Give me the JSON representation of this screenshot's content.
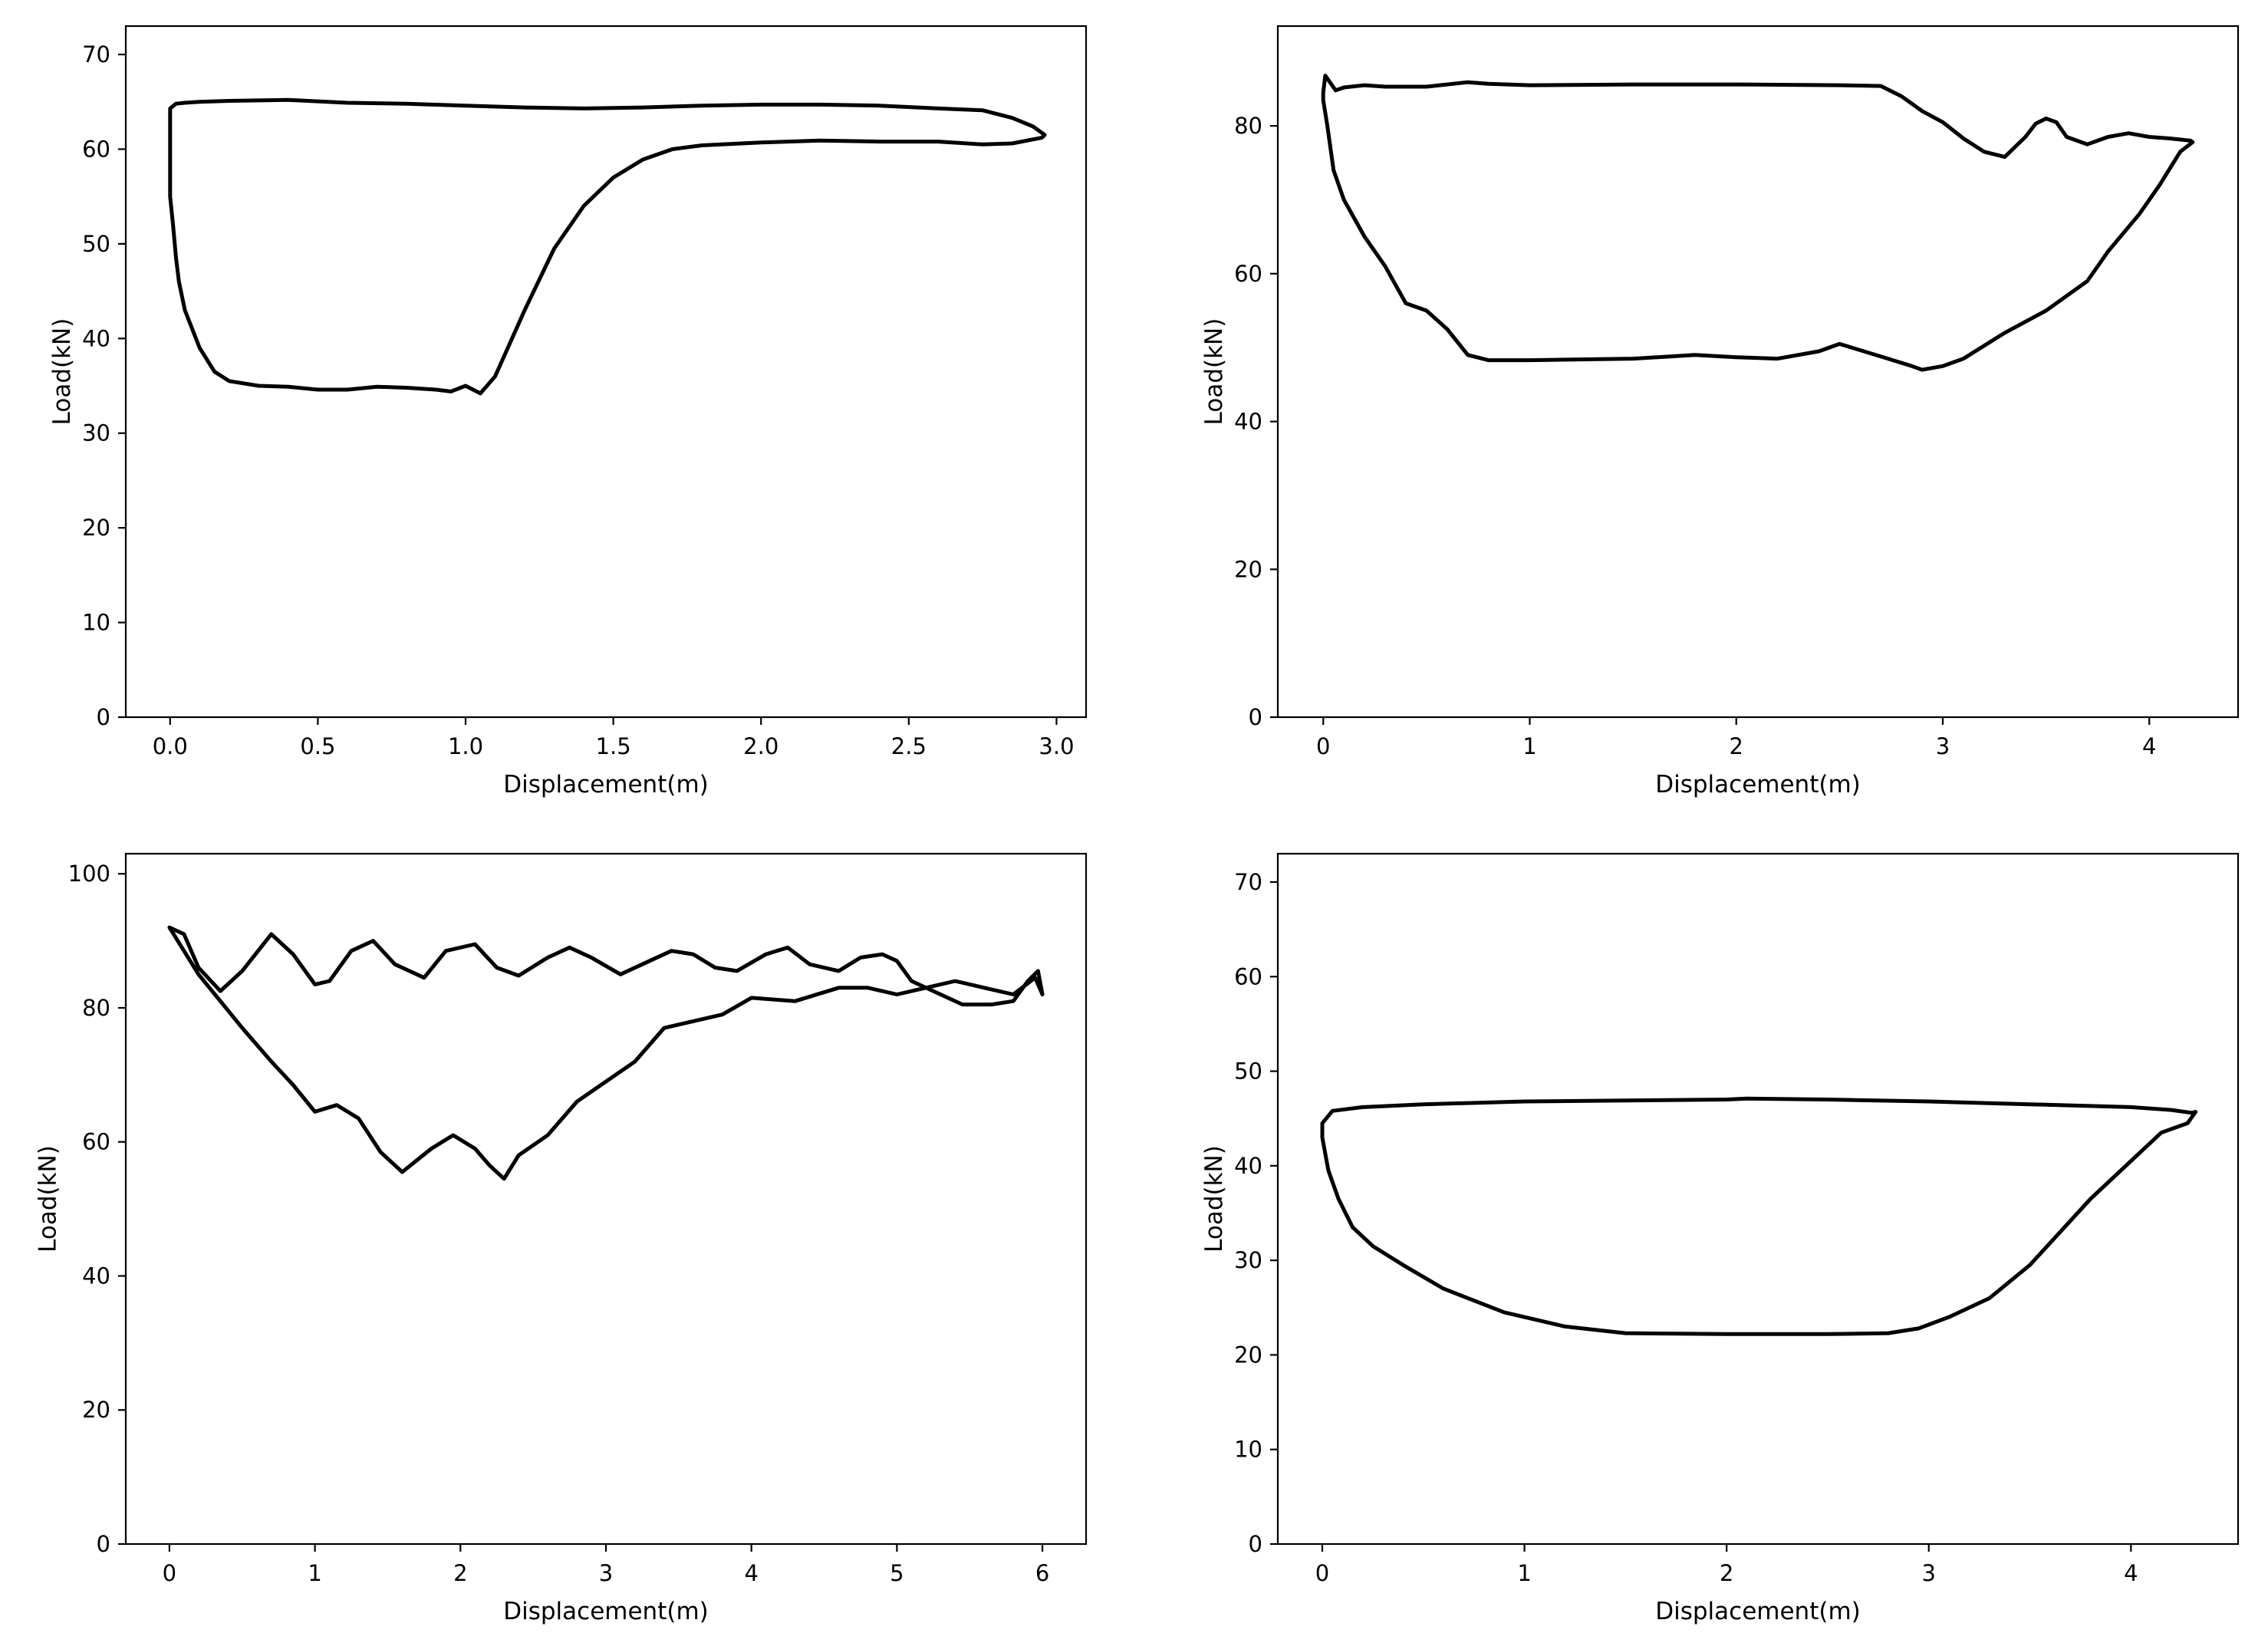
{
  "figure": {
    "background": "#ffffff",
    "line_color": "#000000"
  },
  "chart_data": [
    {
      "type": "line",
      "title": "",
      "xlabel": "Displacement(m)",
      "ylabel": "Load(kN)",
      "xlim": [
        -0.15,
        3.1
      ],
      "ylim": [
        0,
        73
      ],
      "xticks": [
        0.0,
        0.5,
        1.0,
        1.5,
        2.0,
        2.5,
        3.0
      ],
      "xtick_labels": [
        "0.0",
        "0.5",
        "1.0",
        "1.5",
        "2.0",
        "2.5",
        "3.0"
      ],
      "yticks": [
        0,
        10,
        20,
        30,
        40,
        50,
        60,
        70
      ],
      "ytick_labels": [
        "0",
        "10",
        "20",
        "30",
        "40",
        "50",
        "60",
        "70"
      ],
      "grid": false,
      "series": [
        {
          "x": [
            0.0,
            0.0,
            0.0,
            0.02,
            0.05,
            0.1,
            0.2,
            0.4,
            0.6,
            0.8,
            1.0,
            1.2,
            1.4,
            1.6,
            1.8,
            2.0,
            2.2,
            2.4,
            2.6,
            2.75,
            2.85,
            2.92,
            2.96,
            2.95,
            2.85,
            2.75,
            2.6,
            2.4,
            2.2,
            2.0,
            1.8,
            1.7,
            1.6,
            1.5,
            1.4,
            1.3,
            1.2,
            1.15,
            1.1,
            1.05,
            1.0,
            0.95,
            0.9,
            0.8,
            0.7,
            0.6,
            0.5,
            0.4,
            0.3,
            0.2,
            0.15,
            0.1,
            0.05,
            0.03,
            0.02,
            0.01,
            0.0,
            0.0,
            0.0
          ],
          "y": [
            62.5,
            63.5,
            64.3,
            64.8,
            64.9,
            65.0,
            65.1,
            65.2,
            64.9,
            64.8,
            64.6,
            64.4,
            64.3,
            64.4,
            64.6,
            64.7,
            64.7,
            64.6,
            64.3,
            64.1,
            63.3,
            62.4,
            61.5,
            61.2,
            60.6,
            60.5,
            60.8,
            60.8,
            60.9,
            60.7,
            60.4,
            60.0,
            58.9,
            57.0,
            54.0,
            49.5,
            43.0,
            39.5,
            36.0,
            34.2,
            35.0,
            34.4,
            34.6,
            34.8,
            34.9,
            34.6,
            34.6,
            34.9,
            35.0,
            35.5,
            36.5,
            39.0,
            43.0,
            46.0,
            48.5,
            52.0,
            55.0,
            58.0,
            60.5
          ]
        }
      ]
    },
    {
      "type": "line",
      "title": "",
      "xlabel": "Displacement(m)",
      "ylabel": "Load(kN)",
      "xlim": [
        -0.22,
        4.43
      ],
      "ylim": [
        0,
        93.5
      ],
      "xticks": [
        0,
        1,
        2,
        3,
        4
      ],
      "xtick_labels": [
        "0",
        "1",
        "2",
        "3",
        "4"
      ],
      "yticks": [
        0,
        20,
        40,
        60,
        80
      ],
      "ytick_labels": [
        "0",
        "20",
        "40",
        "60",
        "80"
      ],
      "grid": false,
      "series": [
        {
          "x": [
            0.0,
            0.01,
            0.03,
            0.06,
            0.1,
            0.2,
            0.3,
            0.5,
            0.7,
            0.8,
            1.0,
            1.5,
            2.0,
            2.5,
            2.7,
            2.8,
            2.9,
            3.0,
            3.1,
            3.2,
            3.3,
            3.4,
            3.45,
            3.5,
            3.55,
            3.6,
            3.7,
            3.8,
            3.9,
            4.0,
            4.1,
            4.2,
            4.21,
            4.15,
            4.05,
            3.95,
            3.8,
            3.7,
            3.5,
            3.3,
            3.1,
            3.0,
            2.9,
            2.85,
            2.7,
            2.5,
            2.4,
            2.2,
            2.0,
            1.8,
            1.5,
            1.0,
            0.8,
            0.7,
            0.6,
            0.5,
            0.4,
            0.3,
            0.2,
            0.1,
            0.05,
            0.02,
            0.0
          ],
          "y": [
            84.5,
            86.8,
            86.0,
            84.8,
            85.2,
            85.5,
            85.3,
            85.3,
            85.9,
            85.7,
            85.5,
            85.6,
            85.6,
            85.5,
            85.4,
            84.0,
            82.0,
            80.5,
            78.3,
            76.5,
            75.8,
            78.5,
            80.3,
            81.0,
            80.5,
            78.5,
            77.5,
            78.5,
            79.0,
            78.5,
            78.3,
            78.0,
            77.8,
            76.5,
            72.0,
            68.0,
            63.0,
            59.0,
            55.0,
            52.0,
            48.5,
            47.5,
            47.0,
            47.5,
            48.8,
            50.5,
            49.5,
            48.5,
            48.7,
            49.0,
            48.5,
            48.3,
            48.3,
            49.0,
            52.5,
            55.0,
            56.0,
            61.0,
            65.0,
            70.0,
            74.0,
            80.0,
            83.5
          ]
        }
      ]
    },
    {
      "type": "line",
      "title": "",
      "xlabel": "Displacement(m)",
      "ylabel": "Load(kN)",
      "xlim": [
        -0.3,
        6.3
      ],
      "ylim": [
        0,
        103
      ],
      "xticks": [
        0,
        1,
        2,
        3,
        4,
        5,
        6
      ],
      "xtick_labels": [
        "0",
        "1",
        "2",
        "3",
        "4",
        "5",
        "6"
      ],
      "yticks": [
        0,
        20,
        40,
        60,
        80,
        100
      ],
      "ytick_labels": [
        "0",
        "20",
        "40",
        "60",
        "80",
        "100"
      ],
      "grid": false,
      "series": [
        {
          "x": [
            0.0,
            0.1,
            0.2,
            0.35,
            0.5,
            0.7,
            0.85,
            1.0,
            1.1,
            1.25,
            1.4,
            1.55,
            1.75,
            1.9,
            2.1,
            2.25,
            2.4,
            2.6,
            2.75,
            2.9,
            3.1,
            3.25,
            3.45,
            3.6,
            3.75,
            3.9,
            4.1,
            4.25,
            4.4,
            4.6,
            4.75,
            4.9,
            5.0,
            5.1,
            5.3,
            5.45,
            5.65,
            5.8,
            5.9,
            5.97,
            6.0,
            5.95,
            5.8,
            5.6,
            5.4,
            5.2,
            5.0,
            4.8,
            4.6,
            4.3,
            4.0,
            3.8,
            3.6,
            3.4,
            3.2,
            3.0,
            2.8,
            2.6,
            2.4,
            2.3,
            2.2,
            2.1,
            1.95,
            1.8,
            1.6,
            1.45,
            1.3,
            1.15,
            1.0,
            0.85,
            0.7,
            0.5,
            0.35,
            0.2,
            0.0
          ],
          "y": [
            92.0,
            91.0,
            86.0,
            82.5,
            85.5,
            91.0,
            88.0,
            83.5,
            84.0,
            88.5,
            90.0,
            86.5,
            84.5,
            88.5,
            89.5,
            86.0,
            84.8,
            87.5,
            89.0,
            87.5,
            85.0,
            86.5,
            88.5,
            88.0,
            86.0,
            85.5,
            88.0,
            89.0,
            86.5,
            85.5,
            87.5,
            88.0,
            87.0,
            84.0,
            82.0,
            80.5,
            80.5,
            81.0,
            84.0,
            85.5,
            82.0,
            84.5,
            82.0,
            83.0,
            84.0,
            83.0,
            82.0,
            83.0,
            83.0,
            81.0,
            81.5,
            79.0,
            78.0,
            77.0,
            72.0,
            69.0,
            66.0,
            61.0,
            58.0,
            54.5,
            56.5,
            59.0,
            61.0,
            59.0,
            55.5,
            58.5,
            63.5,
            65.5,
            64.5,
            68.5,
            72.0,
            77.0,
            81.0,
            85.0,
            92.0
          ]
        }
      ]
    },
    {
      "type": "line",
      "title": "",
      "xlabel": "Displacement(m)",
      "ylabel": "Load(kN)",
      "xlim": [
        -0.22,
        4.53
      ],
      "ylim": [
        0,
        73
      ],
      "xticks": [
        0,
        1,
        2,
        3,
        4
      ],
      "xtick_labels": [
        "0",
        "1",
        "2",
        "3",
        "4"
      ],
      "yticks": [
        0,
        10,
        20,
        30,
        40,
        50,
        60,
        70
      ],
      "ytick_labels": [
        "0",
        "10",
        "20",
        "30",
        "40",
        "50",
        "60",
        "70"
      ],
      "grid": false,
      "series": [
        {
          "x": [
            0.0,
            0.05,
            0.2,
            0.5,
            1.0,
            1.5,
            2.0,
            2.1,
            2.5,
            3.0,
            3.5,
            4.0,
            4.2,
            4.3,
            4.32,
            4.28,
            4.15,
            4.0,
            3.8,
            3.5,
            3.3,
            3.1,
            2.95,
            2.8,
            2.5,
            2.0,
            1.5,
            1.2,
            0.9,
            0.6,
            0.4,
            0.25,
            0.15,
            0.08,
            0.03,
            0.0
          ],
          "y": [
            44.5,
            45.8,
            46.2,
            46.5,
            46.8,
            46.9,
            47.0,
            47.1,
            47.0,
            46.8,
            46.5,
            46.2,
            45.9,
            45.6,
            45.7,
            44.5,
            43.5,
            40.5,
            36.5,
            29.5,
            26.0,
            24.0,
            22.8,
            22.3,
            22.2,
            22.2,
            22.3,
            23.0,
            24.5,
            27.0,
            29.5,
            31.5,
            33.5,
            36.5,
            39.5,
            43.0
          ]
        }
      ]
    }
  ]
}
